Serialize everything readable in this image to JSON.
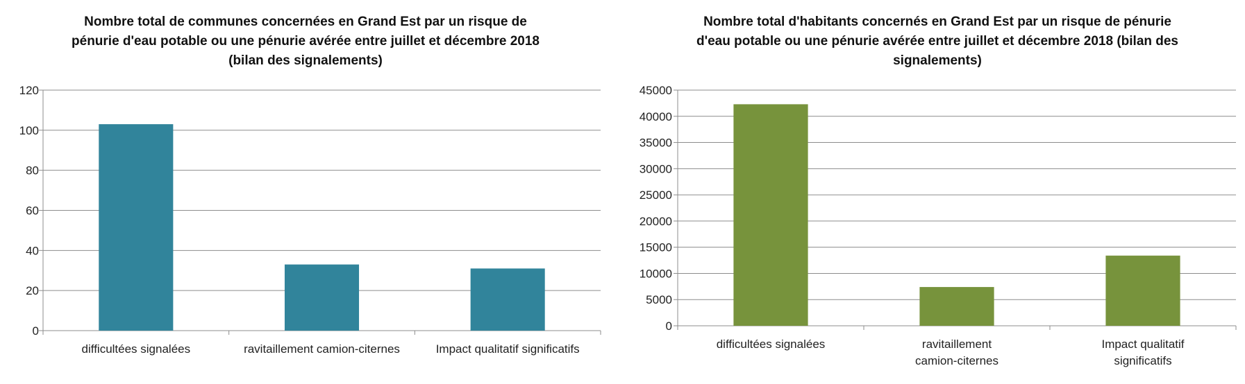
{
  "chart_data": [
    {
      "type": "bar",
      "title": "Nombre total de communes concernées en Grand Est par un risque de pénurie d'eau potable ou une pénurie avérée entre juillet et décembre 2018 (bilan des signalements)",
      "categories": [
        "difficultées signalées",
        "ravitaillement camion-citernes",
        "Impact qualitatif significatifs"
      ],
      "values": [
        103,
        33,
        31
      ],
      "ylim": [
        0,
        120
      ],
      "yticks": [
        0,
        20,
        40,
        60,
        80,
        100,
        120
      ],
      "grid": true,
      "bar_color": "#31849b"
    },
    {
      "type": "bar",
      "title": "Nombre  total d'habitants concernés en Grand Est par un risque de pénurie d'eau potable ou une pénurie avérée entre juillet et décembre 2018 (bilan des signalements)",
      "categories": [
        "difficultées signalées",
        "ravitaillement camion-citernes",
        "Impact qualitatif significatifs"
      ],
      "values": [
        42300,
        7400,
        13400
      ],
      "ylim": [
        0,
        45000
      ],
      "yticks": [
        0,
        5000,
        10000,
        15000,
        20000,
        25000,
        30000,
        35000,
        40000,
        45000
      ],
      "grid": true,
      "bar_color": "#77933c"
    }
  ]
}
